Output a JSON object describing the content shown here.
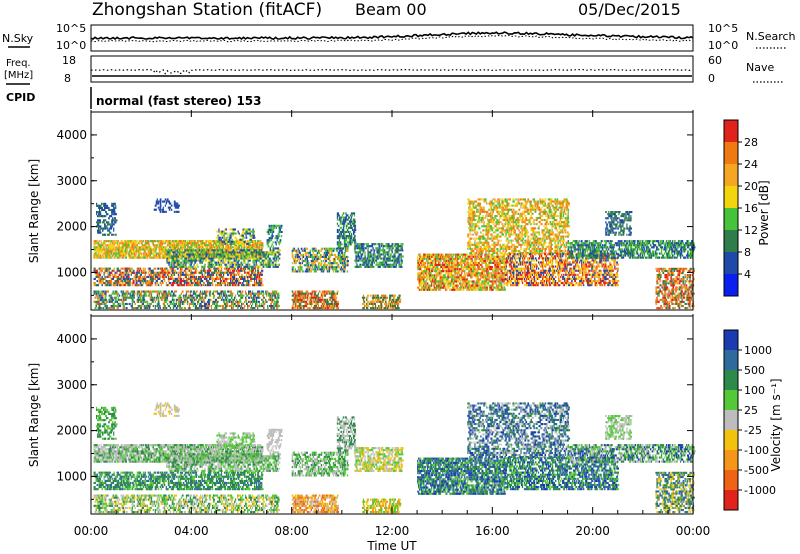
{
  "header": {
    "station_title": "Zhongshan Station (fitACF)",
    "beam_label": "Beam 00",
    "date": "05/Dec/2015"
  },
  "panels": {
    "noise": {
      "left_label": "N.Sky",
      "right_label": "N.Search",
      "left_ticks": [
        "10^5",
        "10^0"
      ],
      "right_ticks": [
        "10^5",
        "10^0"
      ]
    },
    "frequency": {
      "left_label_line1": "Freq.",
      "left_label_line2": "[MHz]",
      "right_label": "Nave",
      "left_ticks": [
        "18",
        "8"
      ],
      "right_ticks": [
        "60",
        "0"
      ]
    },
    "cpid": {
      "label": "CPID",
      "mode": "normal (fast stereo) 153"
    }
  },
  "chart_data": [
    {
      "type": "heatmap",
      "name": "power",
      "xlabel": "",
      "ylabel": "Slant Range [km]",
      "x_ticks": [
        "00:00",
        "04:00",
        "08:00",
        "12:00",
        "16:00",
        "20:00",
        "00:00"
      ],
      "xlim_hours": [
        0,
        24
      ],
      "ylim": [
        180,
        4500
      ],
      "y_ticks": [
        1000,
        2000,
        3000,
        4000
      ],
      "colorbar": {
        "label": "Power [dB]",
        "ticks": [
          "4",
          "8",
          "12",
          "16",
          "20",
          "24",
          "28"
        ],
        "colors": [
          "#0a1ef0",
          "#1f4aa8",
          "#2e7d4a",
          "#46c33a",
          "#f2d50f",
          "#f5a623",
          "#ef7a12",
          "#e0231b"
        ]
      }
    },
    {
      "type": "heatmap",
      "name": "velocity",
      "xlabel": "Time UT",
      "ylabel": "Slant Range [km]",
      "x_ticks": [
        "00:00",
        "04:00",
        "08:00",
        "12:00",
        "16:00",
        "20:00",
        "00:00"
      ],
      "xlim_hours": [
        0,
        24
      ],
      "ylim": [
        180,
        4500
      ],
      "y_ticks": [
        1000,
        2000,
        3000,
        4000
      ],
      "colorbar": {
        "label": "Velocity [m s⁻¹]",
        "ticks": [
          "1000",
          "500",
          "100",
          "25",
          "-25",
          "-100",
          "-500",
          "-1000"
        ],
        "colors": [
          "#1a3cb0",
          "#2e6a9c",
          "#2e8a4a",
          "#55c83a",
          "#bdbdbd",
          "#f2c20f",
          "#f5951a",
          "#ef6414",
          "#e0231b"
        ]
      }
    }
  ]
}
